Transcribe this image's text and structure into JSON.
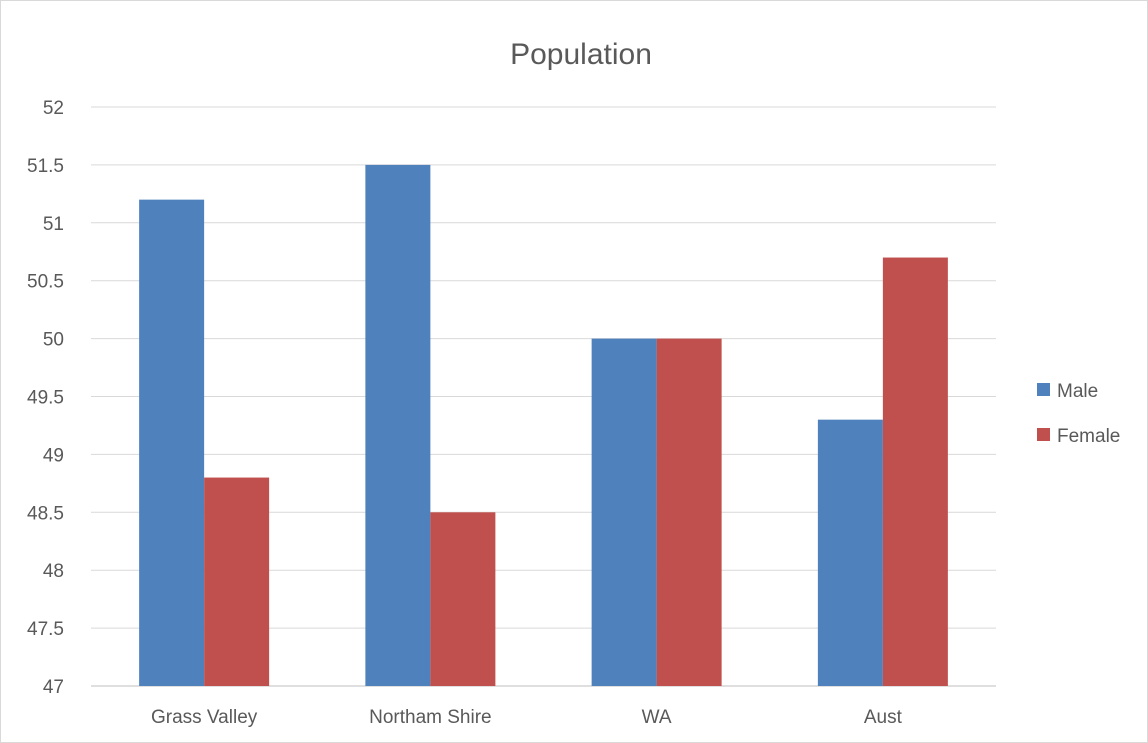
{
  "chart_data": {
    "type": "bar",
    "title": "Population",
    "xlabel": "",
    "ylabel": "",
    "categories": [
      "Grass Valley",
      "Northam Shire",
      "WA",
      "Aust"
    ],
    "series": [
      {
        "name": "Male",
        "color": "#4f81bd",
        "values": [
          51.2,
          51.5,
          50.0,
          49.3
        ]
      },
      {
        "name": "Female",
        "color": "#c0504d",
        "values": [
          48.8,
          48.5,
          50.0,
          50.7
        ]
      }
    ],
    "ylim": [
      47,
      52
    ],
    "yticks": [
      "47",
      "47.5",
      "48",
      "48.5",
      "49",
      "49.5",
      "50",
      "50.5",
      "51",
      "51.5",
      "52"
    ],
    "grid": true,
    "legend_position": "right"
  }
}
